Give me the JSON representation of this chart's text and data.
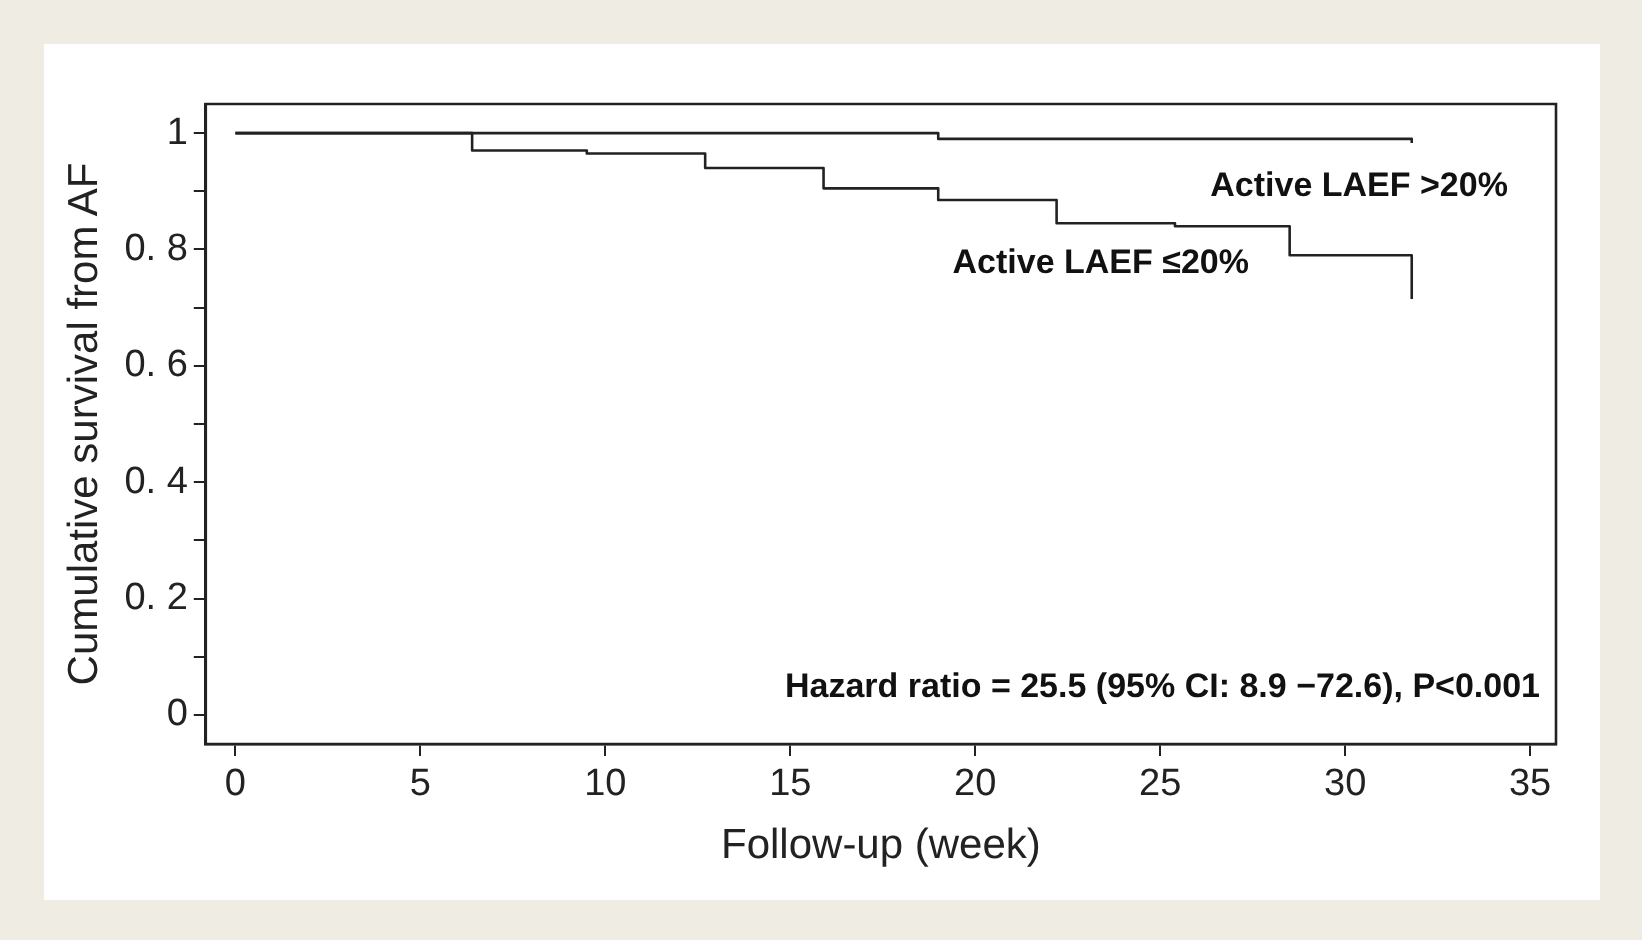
{
  "chart_data": {
    "type": "step",
    "xlabel": "Follow-up (week)",
    "ylabel": "Cumulative survival from AF",
    "xlim": [
      -0.8,
      35.7
    ],
    "xticks": [
      0,
      5,
      10,
      15,
      20,
      25,
      30,
      35
    ],
    "ylim": [
      -0.05,
      1.05
    ],
    "yticks": [
      0,
      {
        "value": 0.1,
        "label": null
      },
      {
        "value": 0.2,
        "label": "0. 2"
      },
      {
        "value": 0.3,
        "label": null
      },
      {
        "value": 0.4,
        "label": "0. 4"
      },
      {
        "value": 0.5,
        "label": null
      },
      {
        "value": 0.6,
        "label": "0. 6"
      },
      {
        "value": 0.7,
        "label": null
      },
      {
        "value": 0.8,
        "label": "0. 8"
      },
      {
        "value": 0.9,
        "label": null
      },
      1
    ],
    "grid": false,
    "legend": false,
    "marker": "none",
    "line_style": "solid",
    "series": [
      {
        "name": "Active LAEF >20%",
        "color": "#222222",
        "x": [
          0,
          19,
          31.8,
          31.8
        ],
        "values": [
          1,
          0.99,
          0.99,
          0.983
        ]
      },
      {
        "name": "Active LAEF ≤20%",
        "color": "#222222",
        "x": [
          0,
          6.4,
          9.5,
          12.7,
          15.9,
          19.0,
          22.2,
          25.4,
          28.5,
          31.8
        ],
        "values": [
          1,
          0.97,
          0.965,
          0.94,
          0.905,
          0.885,
          0.845,
          0.84,
          0.79,
          0.715
        ]
      }
    ],
    "annotations": [
      "Hazard ratio = 25.5 (95% CI: 8.9 −72.6), P<0.001"
    ]
  }
}
